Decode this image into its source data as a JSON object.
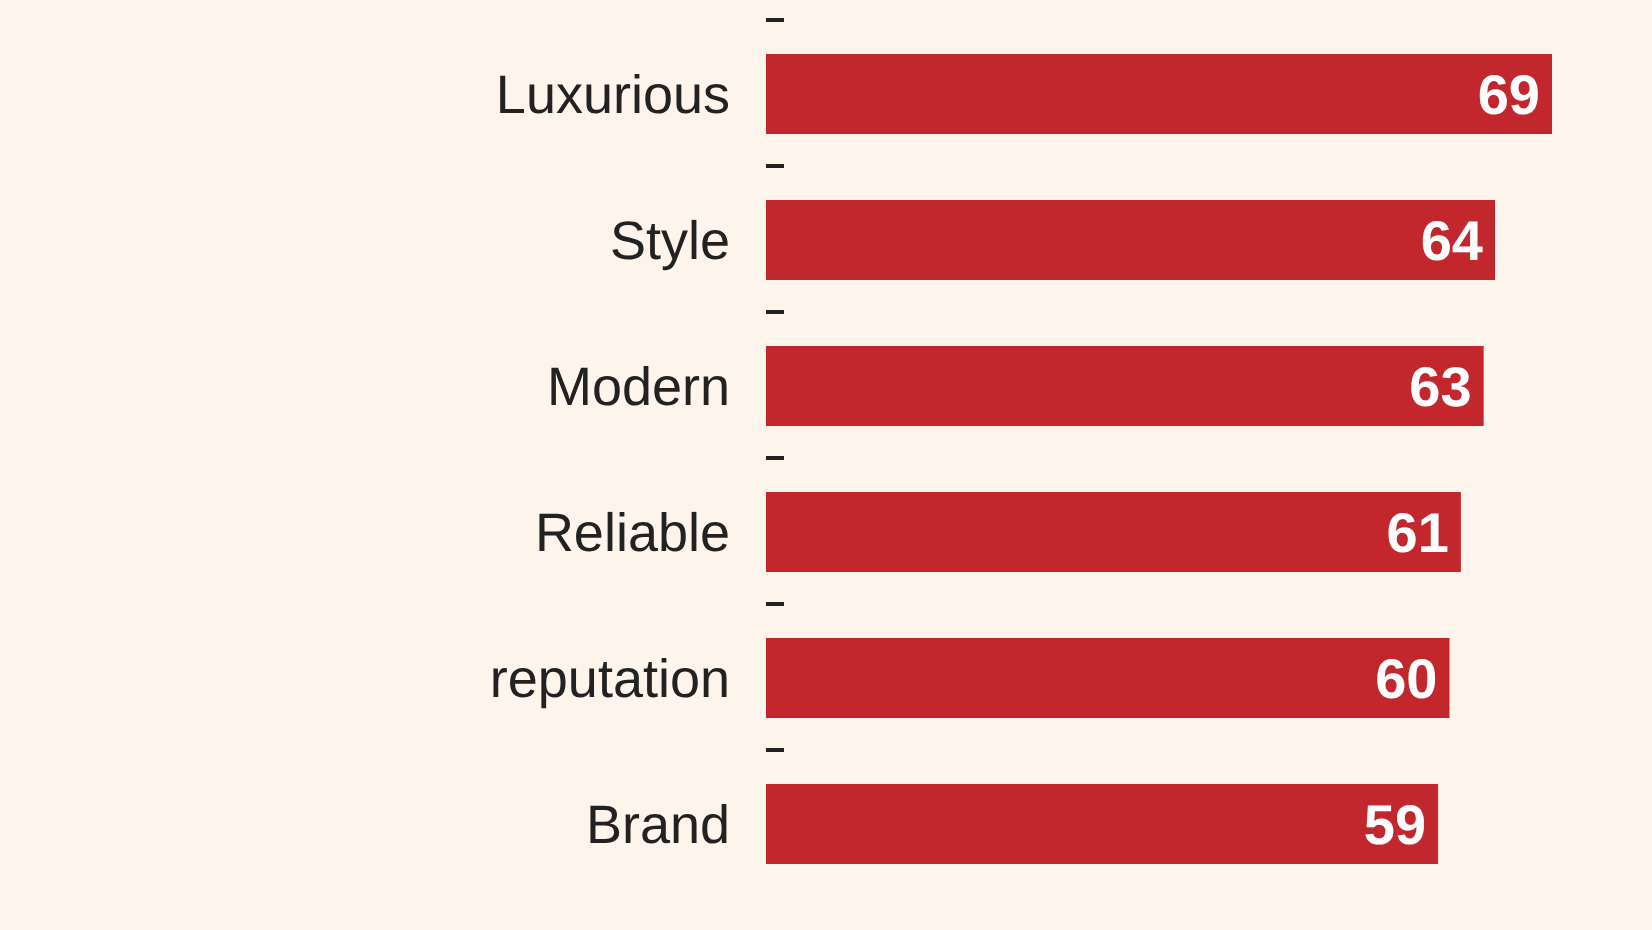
{
  "chart_data": {
    "type": "bar",
    "orientation": "horizontal",
    "categories": [
      "Luxurious",
      "Style",
      "Modern",
      "Reliable",
      "reputation",
      "Brand"
    ],
    "values": [
      69,
      64,
      63,
      61,
      60,
      59
    ],
    "color": "#c1272d",
    "data_labels": true
  }
}
